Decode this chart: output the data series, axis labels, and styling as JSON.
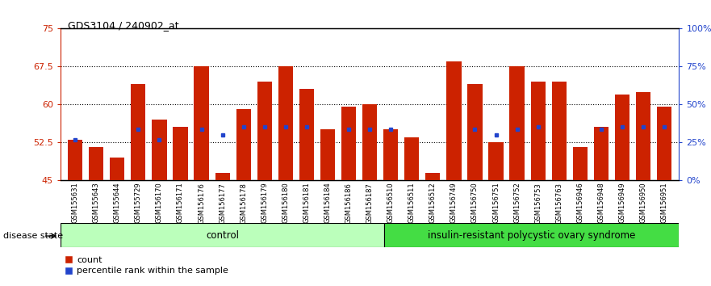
{
  "title": "GDS3104 / 240902_at",
  "samples": [
    "GSM155631",
    "GSM155643",
    "GSM155644",
    "GSM155729",
    "GSM156170",
    "GSM156171",
    "GSM156176",
    "GSM156177",
    "GSM156178",
    "GSM156179",
    "GSM156180",
    "GSM156181",
    "GSM156184",
    "GSM156186",
    "GSM156187",
    "GSM156510",
    "GSM156511",
    "GSM156512",
    "GSM156749",
    "GSM156750",
    "GSM156751",
    "GSM156752",
    "GSM156753",
    "GSM156763",
    "GSM156946",
    "GSM156948",
    "GSM156949",
    "GSM156950",
    "GSM156951"
  ],
  "bar_values": [
    53.0,
    51.5,
    49.5,
    64.0,
    57.0,
    55.5,
    67.5,
    46.5,
    59.0,
    64.5,
    67.5,
    63.0,
    55.0,
    59.5,
    60.0,
    55.0,
    53.5,
    46.5,
    68.5,
    64.0,
    52.5,
    67.5,
    64.5,
    64.5,
    51.5,
    55.5,
    62.0,
    62.5,
    59.5
  ],
  "dot_values": [
    53.0,
    null,
    null,
    55.0,
    53.0,
    null,
    55.0,
    54.0,
    55.5,
    55.5,
    55.5,
    55.5,
    null,
    55.0,
    55.0,
    55.0,
    null,
    null,
    null,
    55.0,
    54.0,
    55.0,
    55.5,
    null,
    null,
    55.0,
    55.5,
    55.5,
    55.5
  ],
  "bar_color": "#cc2200",
  "dot_color": "#2244cc",
  "ylim_left": [
    45,
    75
  ],
  "ylim_right": [
    0,
    100
  ],
  "yticks_left": [
    45,
    52.5,
    60,
    67.5,
    75
  ],
  "ytick_labels_left": [
    "45",
    "52.5",
    "60",
    "67.5",
    "75"
  ],
  "yticks_right": [
    0,
    25,
    50,
    75,
    100
  ],
  "ytick_labels_right": [
    "0%",
    "25%",
    "50%",
    "75%",
    "100%"
  ],
  "hlines": [
    52.5,
    60.0,
    67.5
  ],
  "control_count": 15,
  "disease_label": "disease state",
  "control_label": "control",
  "syndrome_label": "insulin-resistant polycystic ovary syndrome",
  "control_color": "#bbffbb",
  "syndrome_color": "#44dd44",
  "legend_count": "count",
  "legend_pct": "percentile rank within the sample",
  "bg_color": "#ffffff",
  "plot_bg": "#ffffff",
  "axis_color_left": "#cc2200",
  "axis_color_right": "#2244cc"
}
